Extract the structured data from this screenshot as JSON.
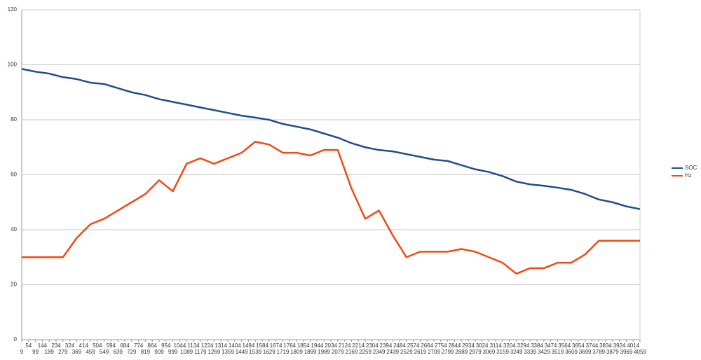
{
  "chart_data": {
    "type": "line",
    "x": [
      9,
      99,
      189,
      279,
      369,
      459,
      549,
      639,
      729,
      819,
      909,
      999,
      1089,
      1179,
      1269,
      1359,
      1449,
      1539,
      1629,
      1719,
      1809,
      1899,
      1989,
      2079,
      2169,
      2259,
      2349,
      2439,
      2529,
      2619,
      2709,
      2799,
      2889,
      2979,
      3069,
      3159,
      3249,
      3339,
      3429,
      3519,
      3609,
      3699,
      3789,
      3879,
      3969,
      4059
    ],
    "series": [
      {
        "name": "SOC",
        "color": "#1f4e8c",
        "values": [
          98.5,
          97.5,
          96.8,
          95.5,
          94.8,
          93.5,
          93,
          91.5,
          90,
          89,
          87.5,
          86.5,
          85.5,
          84.5,
          83.5,
          82.5,
          81.5,
          80.8,
          80,
          78.5,
          77.5,
          76.5,
          75,
          73.5,
          71.5,
          70,
          69,
          68.5,
          67.5,
          66.5,
          65.5,
          65,
          63.5,
          62,
          61,
          59.5,
          57.5,
          56.5,
          56,
          55.3,
          54.5,
          53,
          51,
          50,
          48.5,
          47.5
        ]
      },
      {
        "name": "Hz",
        "color": "#f04a14",
        "values": [
          30,
          30,
          30,
          30,
          37,
          42,
          44,
          47,
          50,
          53,
          58,
          54,
          64,
          66,
          64,
          66,
          68,
          72,
          71,
          68,
          68,
          67,
          69,
          69,
          55,
          44,
          47,
          38,
          30,
          32,
          32,
          32,
          33,
          32,
          30,
          28,
          24,
          26,
          26,
          28,
          28,
          31,
          36,
          36,
          36,
          36
        ]
      }
    ],
    "xlim": [
      9,
      4059
    ],
    "xticks": [
      9,
      54,
      99,
      144,
      189,
      234,
      279,
      324,
      369,
      414,
      459,
      504,
      549,
      594,
      639,
      684,
      729,
      774,
      819,
      864,
      909,
      954,
      999,
      1044,
      1089,
      1134,
      1179,
      1224,
      1269,
      1314,
      1359,
      1404,
      1449,
      1494,
      1539,
      1584,
      1629,
      1674,
      1719,
      1764,
      1809,
      1854,
      1899,
      1944,
      1989,
      2034,
      2079,
      2124,
      2169,
      2214,
      2259,
      2304,
      2349,
      2394,
      2439,
      2484,
      2529,
      2574,
      2619,
      2664,
      2709,
      2754,
      2799,
      2844,
      2889,
      2934,
      2979,
      3024,
      3069,
      3114,
      3159,
      3204,
      3249,
      3294,
      3339,
      3384,
      3429,
      3474,
      3519,
      3564,
      3609,
      3654,
      3699,
      3744,
      3789,
      3834,
      3879,
      3924,
      3969,
      4014,
      4059
    ],
    "ylim": [
      0,
      120
    ],
    "yticks": [
      0,
      20,
      40,
      60,
      80,
      100,
      120
    ],
    "grid": true,
    "legend": "right"
  }
}
